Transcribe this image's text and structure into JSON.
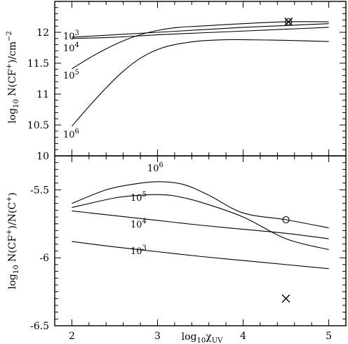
{
  "chart_data": [
    {
      "type": "line",
      "panel": "top",
      "ylabel": "log10 N(CF+)/cm−2",
      "xlim": [
        1.8,
        5.2
      ],
      "ylim": [
        10,
        12.5
      ],
      "yticks": [
        10,
        10.5,
        11,
        11.5,
        12
      ],
      "ytick_labels": [
        "10",
        "10.5",
        "11",
        "11.5",
        "12"
      ],
      "series": [
        {
          "name": "10³",
          "label_base": "10",
          "label_exp": "3",
          "x": [
            2.0,
            2.5,
            3.0,
            3.5,
            4.0,
            4.5,
            5.0
          ],
          "y": [
            11.92,
            11.96,
            12.0,
            12.04,
            12.08,
            12.11,
            12.14
          ]
        },
        {
          "name": "10⁴",
          "label_base": "10",
          "label_exp": "4",
          "x": [
            2.0,
            2.5,
            3.0,
            3.5,
            4.0,
            4.5,
            5.0
          ],
          "y": [
            11.9,
            11.92,
            11.96,
            11.99,
            12.02,
            12.05,
            12.08
          ]
        },
        {
          "name": "10⁵",
          "label_base": "10",
          "label_exp": "5",
          "x": [
            2.0,
            2.25,
            2.5,
            2.75,
            3.0,
            3.25,
            3.5,
            4.0,
            4.5,
            5.0
          ],
          "y": [
            11.41,
            11.62,
            11.8,
            11.94,
            12.03,
            12.08,
            12.1,
            12.14,
            12.17,
            12.17
          ]
        },
        {
          "name": "10⁶",
          "label_base": "10",
          "label_exp": "6",
          "x": [
            2.0,
            2.2,
            2.4,
            2.6,
            2.8,
            3.0,
            3.2,
            3.5,
            3.8,
            4.0,
            4.5,
            5.0
          ],
          "y": [
            10.48,
            10.8,
            11.1,
            11.37,
            11.58,
            11.72,
            11.8,
            11.86,
            11.88,
            11.88,
            11.87,
            11.85
          ]
        }
      ],
      "markers": [
        {
          "shape": "x",
          "x": 4.53,
          "y": 12.17
        },
        {
          "shape": "o",
          "x": 4.53,
          "y": 12.17
        }
      ]
    },
    {
      "type": "line",
      "panel": "bottom",
      "xlabel": "log10 χUV",
      "ylabel": "log10 N(CF+)/N(C+)",
      "xlim": [
        1.8,
        5.2
      ],
      "ylim": [
        -6.5,
        -5.25
      ],
      "xticks": [
        2,
        3,
        4,
        5
      ],
      "xtick_labels": [
        "2",
        "3",
        "4",
        "5"
      ],
      "yticks": [
        -6.5,
        -6,
        -5.5
      ],
      "ytick_labels": [
        "-6.5",
        "-6",
        "-5.5"
      ],
      "series": [
        {
          "name": "10³",
          "label_base": "10",
          "label_exp": "3",
          "x": [
            2.0,
            2.5,
            3.0,
            3.5,
            4.0,
            4.5,
            5.0
          ],
          "y": [
            -5.88,
            -5.92,
            -5.955,
            -5.99,
            -6.02,
            -6.05,
            -6.08
          ]
        },
        {
          "name": "10⁴",
          "label_base": "10",
          "label_exp": "4",
          "x": [
            2.0,
            2.5,
            3.0,
            3.5,
            4.0,
            4.5,
            5.0
          ],
          "y": [
            -5.655,
            -5.69,
            -5.725,
            -5.76,
            -5.79,
            -5.82,
            -5.86
          ]
        },
        {
          "name": "10⁵",
          "label_base": "10",
          "label_exp": "5",
          "x": [
            2.0,
            2.5,
            2.8,
            3.0,
            3.2,
            3.5,
            4.0,
            4.5,
            5.0
          ],
          "y": [
            -5.63,
            -5.56,
            -5.54,
            -5.535,
            -5.545,
            -5.59,
            -5.7,
            -5.86,
            -5.94
          ]
        },
        {
          "name": "10⁶",
          "label_base": "10",
          "label_exp": "6",
          "x": [
            2.0,
            2.4,
            2.7,
            3.0,
            3.3,
            3.6,
            4.0,
            4.5,
            5.0
          ],
          "y": [
            -5.6,
            -5.5,
            -5.46,
            -5.44,
            -5.46,
            -5.54,
            -5.67,
            -5.72,
            -5.78
          ]
        }
      ],
      "markers": [
        {
          "shape": "o",
          "x": 4.5,
          "y": -5.72
        },
        {
          "shape": "x",
          "x": 4.5,
          "y": -6.3
        }
      ]
    }
  ]
}
